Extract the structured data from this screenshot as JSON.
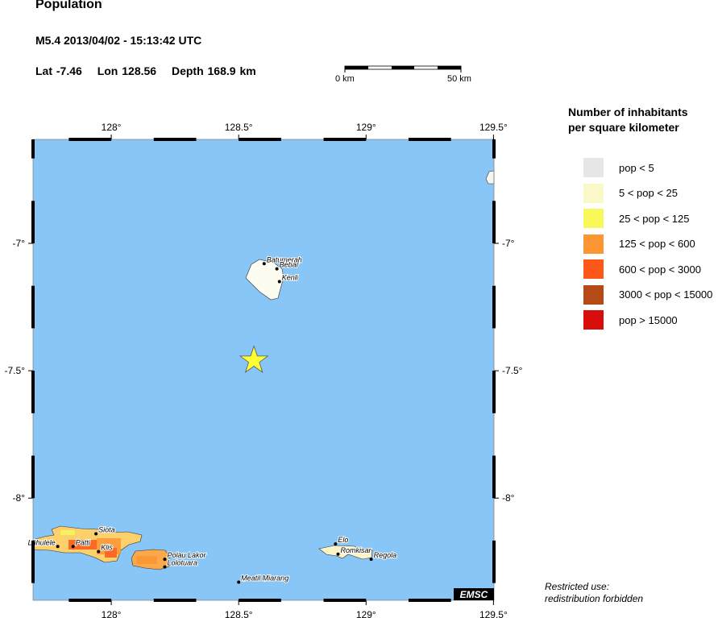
{
  "header": {
    "title": "Population",
    "event": "M5.4  2013/04/02 - 15:13:42 UTC",
    "lat": "Lat -7.46",
    "lon": "Lon 128.56",
    "depth": "Depth 168.9 km"
  },
  "scale_bar": {
    "start_label": "0 km",
    "end_label": "50 km"
  },
  "map": {
    "water_color": "#87c6f7",
    "lon_ticks": [
      "128°",
      "128.5°",
      "129°",
      "129.5°"
    ],
    "lat_ticks": [
      "-7°",
      "-7.5°",
      "-8°"
    ],
    "epicenter": {
      "lat": -7.46,
      "lon": 128.56,
      "color": "#ffff33"
    },
    "cities": [
      {
        "name": "Batumerah",
        "lon": 128.6,
        "lat": -7.08
      },
      {
        "name": "Bebar",
        "lon": 128.65,
        "lat": -7.1
      },
      {
        "name": "Kenli",
        "lon": 128.66,
        "lat": -7.15
      },
      {
        "name": "Siota",
        "lon": 127.94,
        "lat": -8.14
      },
      {
        "name": "Patti",
        "lon": 127.85,
        "lat": -8.19
      },
      {
        "name": "Lühulele",
        "lon": 127.79,
        "lat": -8.19
      },
      {
        "name": "Klis",
        "lon": 127.95,
        "lat": -8.21
      },
      {
        "name": "Polau Lakor",
        "lon": 128.21,
        "lat": -8.24
      },
      {
        "name": "Lolotuara",
        "lon": 128.21,
        "lat": -8.27
      },
      {
        "name": "Meatil Miarang",
        "lon": 128.5,
        "lat": -8.33
      },
      {
        "name": "Elo",
        "lon": 128.88,
        "lat": -8.18
      },
      {
        "name": "Romkisar",
        "lon": 128.89,
        "lat": -8.22
      },
      {
        "name": "Regola",
        "lon": 129.02,
        "lat": -8.24
      }
    ],
    "watermark": "EMSC"
  },
  "legend": {
    "title_line1": "Number of inhabitants",
    "title_line2": "per square kilometer",
    "items": [
      {
        "label": "pop < 5",
        "color": "#e6e6e6"
      },
      {
        "label": "5 < pop < 25",
        "color": "#f8f8c8"
      },
      {
        "label": "25 < pop < 125",
        "color": "#f8f85a"
      },
      {
        "label": "125 < pop < 600",
        "color": "#fb9633"
      },
      {
        "label": "600 < pop < 3000",
        "color": "#fd581a"
      },
      {
        "label": "3000 < pop < 15000",
        "color": "#b64a16"
      },
      {
        "label": "pop > 15000",
        "color": "#d80e0c"
      }
    ]
  },
  "footer": {
    "line1": "Restricted use:",
    "line2": "redistribution forbidden"
  }
}
